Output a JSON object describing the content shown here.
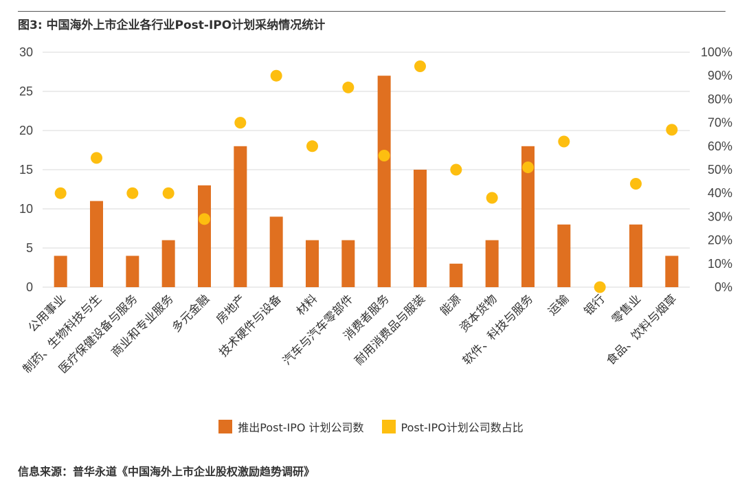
{
  "figure": {
    "title": "图3: 中国海外上市企业各行业Post-IPO计划采纳情况统计",
    "source": "信息来源：普华永道《中国海外上市企业股权激励趋势调研》"
  },
  "colors": {
    "bar": "#E07020",
    "dot": "#FDBE10",
    "grid": "#D9D9D9"
  },
  "chart_data": {
    "type": "bar",
    "title": "图3: 中国海外上市企业各行业Post-IPO计划采纳情况统计",
    "categories": [
      "公用事业",
      "制药、生物科技与生",
      "医疗保健设备与服务",
      "商业和专业服务",
      "多元金融",
      "房地产",
      "技术硬件与设备",
      "材料",
      "汽车与汽车零部件",
      "消费者服务",
      "耐用消费品与服装",
      "能源",
      "资本货物",
      "软件、科技与服务",
      "运输",
      "银行",
      "零售业",
      "食品、饮料与烟草"
    ],
    "series": [
      {
        "name": "推出Post-IPO 计划公司数",
        "kind": "bar",
        "axis": "left",
        "values": [
          4,
          11,
          4,
          6,
          13,
          18,
          9,
          6,
          6,
          27,
          15,
          3,
          6,
          18,
          8,
          0,
          8,
          4
        ]
      },
      {
        "name": "Post-IPO计划公司数占比",
        "kind": "scatter",
        "axis": "right",
        "values": [
          0.4,
          0.55,
          0.4,
          0.4,
          0.29,
          0.7,
          0.9,
          0.6,
          0.85,
          0.56,
          0.94,
          0.5,
          0.38,
          0.51,
          0.62,
          0.0,
          0.44,
          0.67
        ]
      }
    ],
    "y_left": {
      "ylim": [
        0,
        30
      ],
      "ticks": [
        "0",
        "5",
        "10",
        "15",
        "20",
        "25",
        "30"
      ]
    },
    "y_right": {
      "ylim": [
        0,
        1
      ],
      "ticks": [
        "0%",
        "10%",
        "20%",
        "30%",
        "40%",
        "50%",
        "60%",
        "70%",
        "80%",
        "90%",
        "100%"
      ]
    },
    "legend": [
      "推出Post-IPO 计划公司数",
      "Post-IPO计划公司数占比"
    ]
  }
}
